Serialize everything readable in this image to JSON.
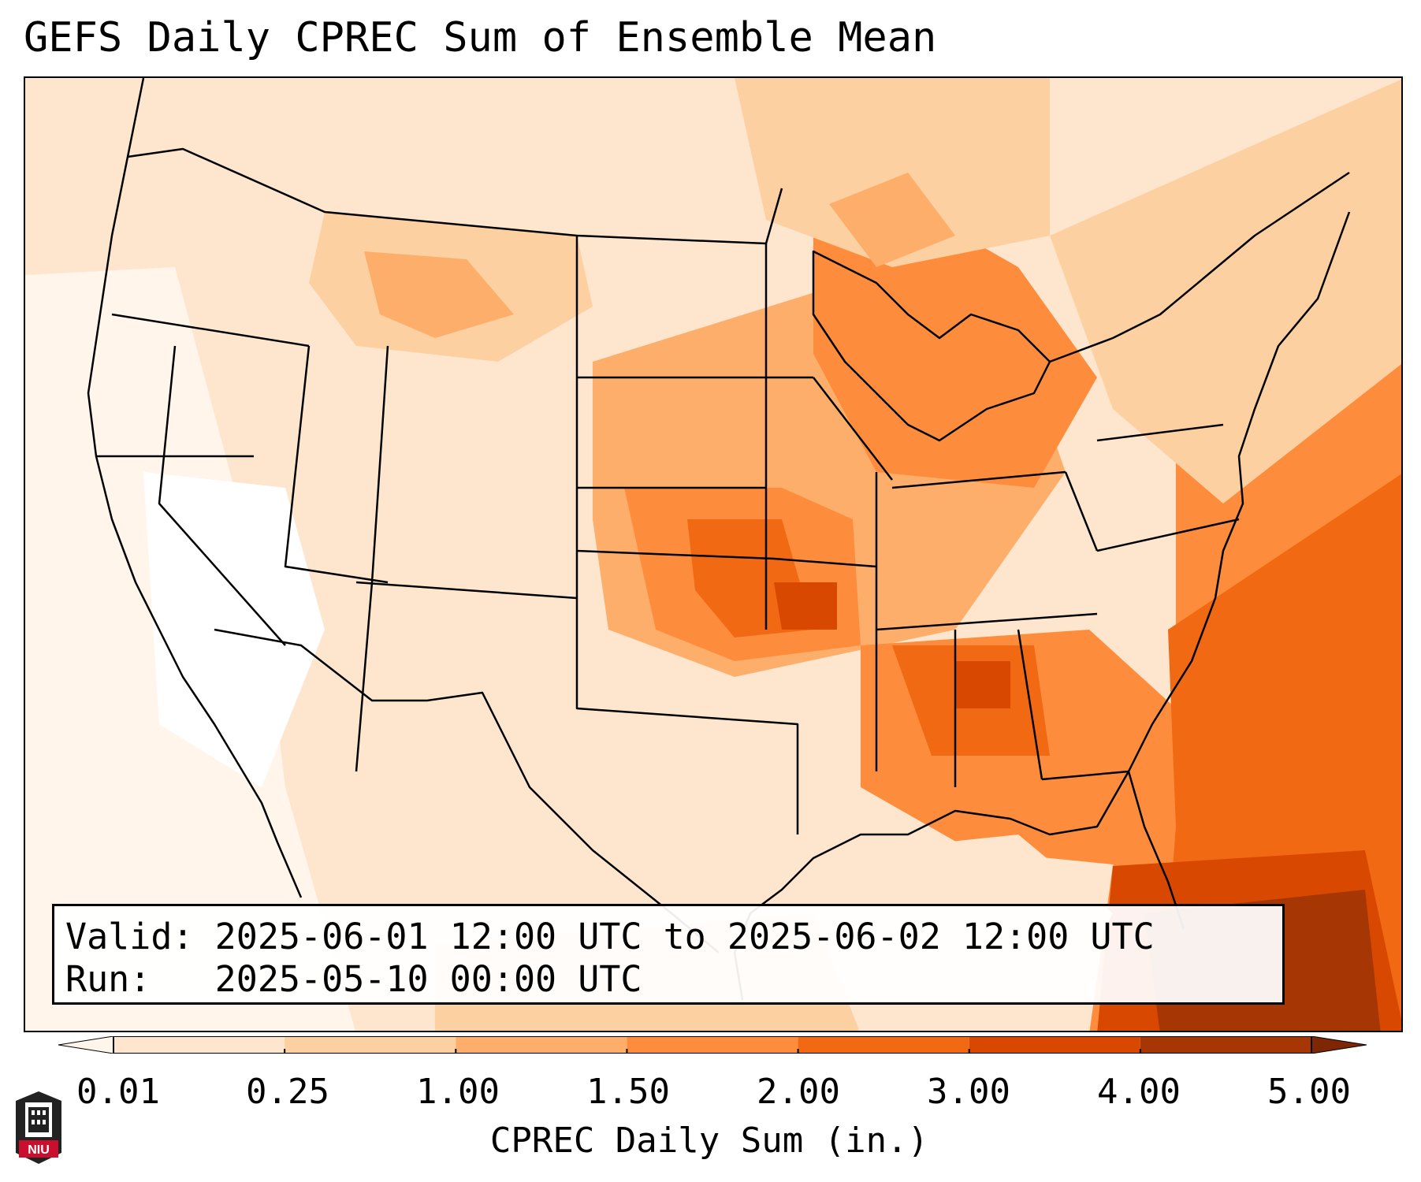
{
  "title": "GEFS Daily CPREC Sum of Ensemble Mean",
  "info": {
    "valid_line": "Valid: 2025-06-01 12:00 UTC to 2025-06-02 12:00 UTC",
    "run_line": "Run:   2025-05-10 00:00 UTC"
  },
  "colorbar": {
    "label": "CPREC Daily Sum (in.)",
    "ticks": [
      "0.01",
      "0.25",
      "1.00",
      "1.50",
      "2.00",
      "3.00",
      "4.00",
      "5.00"
    ],
    "colors": [
      "#fff5eb",
      "#fee6ce",
      "#fdd0a2",
      "#fdae6b",
      "#fd8d3c",
      "#f16913",
      "#d94801",
      "#a63603",
      "#7f2704"
    ]
  },
  "logo": {
    "text": "NIU",
    "icon": "niu-tower-icon"
  },
  "map": {
    "projection": "lambert-conformal",
    "region": "CONUS",
    "field": "CPREC daily sum, ensemble mean",
    "colors": {
      "boundary": "#000000",
      "background": "#ffffff"
    }
  }
}
